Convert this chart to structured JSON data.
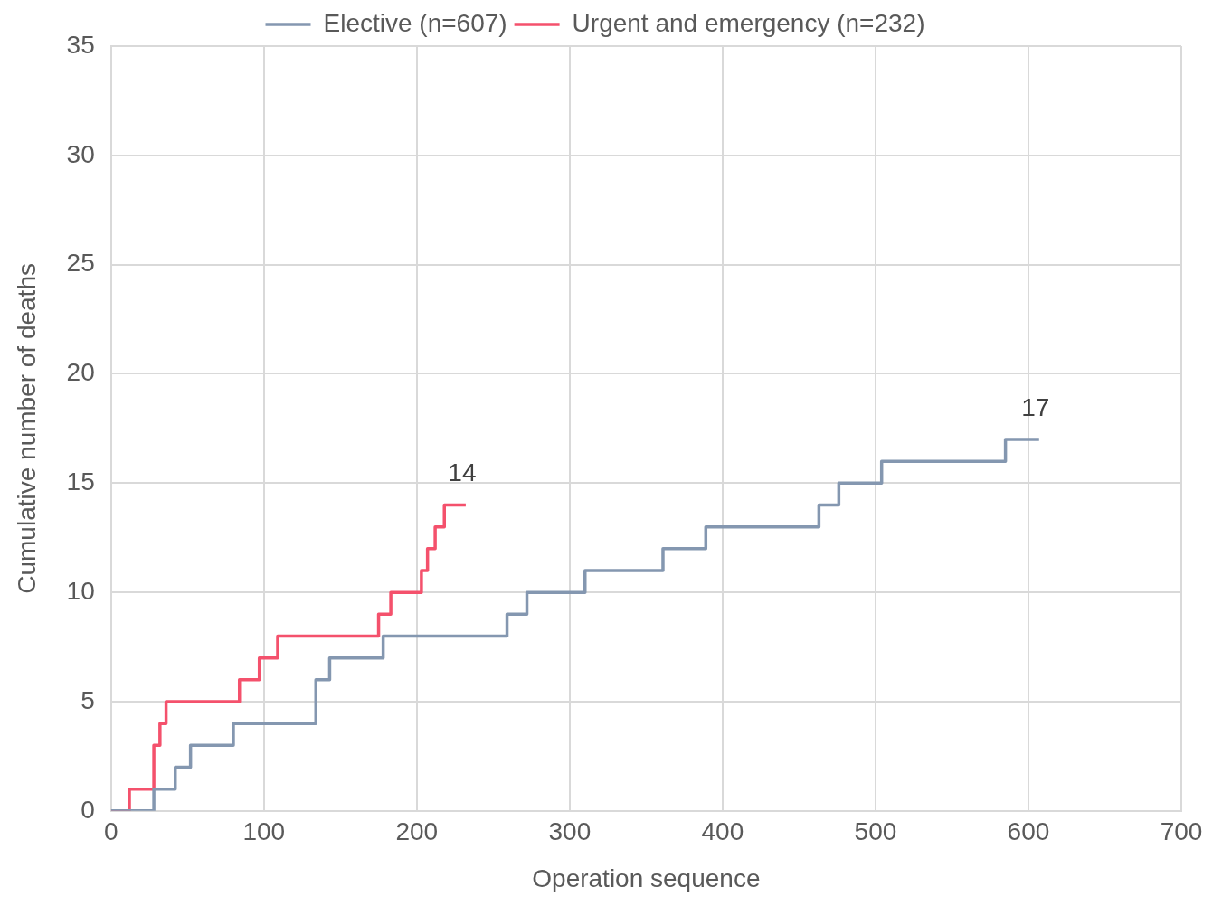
{
  "chart_data": {
    "type": "step",
    "xlabel": "Operation sequence",
    "ylabel": "Cumulative number of deaths",
    "xlim": [
      0,
      700
    ],
    "xticks": [
      0,
      100,
      200,
      300,
      400,
      500,
      600,
      700
    ],
    "ylim": [
      0,
      35
    ],
    "yticks": [
      0,
      5,
      10,
      15,
      20,
      25,
      30,
      35
    ],
    "grid": true,
    "legend": "top",
    "marker": "none",
    "line_style": "solid",
    "series": [
      {
        "name": "Elective (n=607)",
        "color": "#8497b0",
        "x": [
          0,
          28,
          42,
          52,
          80,
          134,
          143,
          178,
          259,
          272,
          310,
          361,
          389,
          463,
          476,
          504,
          585,
          607
        ],
        "values": [
          0,
          1,
          2,
          3,
          4,
          6,
          7,
          8,
          9,
          10,
          11,
          12,
          13,
          14,
          15,
          16,
          17,
          17
        ]
      },
      {
        "name": "Urgent and emergency (n=232)",
        "color": "#f4516c",
        "x": [
          0,
          12,
          28,
          32,
          36,
          84,
          97,
          109,
          175,
          183,
          203,
          207,
          212,
          218,
          232
        ],
        "values": [
          0,
          1,
          3,
          4,
          5,
          6,
          7,
          8,
          9,
          10,
          11,
          12,
          13,
          14,
          14
        ]
      }
    ],
    "annotations": [
      {
        "text": "14",
        "x": 232,
        "y": 14
      },
      {
        "text": "17",
        "x": 607,
        "y": 17
      }
    ]
  }
}
